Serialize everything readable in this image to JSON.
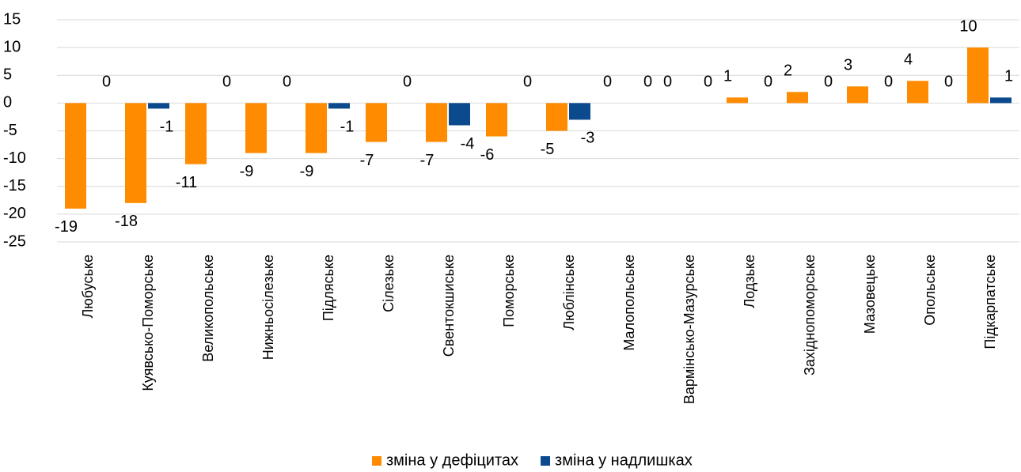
{
  "chart_data": {
    "type": "bar",
    "categories": [
      "Любуське",
      "Куявсько-Поморське",
      "Великопольське",
      "Нижньосілезьке",
      "Підляське",
      "Сілезьке",
      "Свентокшиське",
      "Поморське",
      "Люблінське",
      "Малопольське",
      "Вармінсько-Мазурське",
      "Лодзьке",
      "Західнопоморське",
      "Мазовецьке",
      "Опольське",
      "Підкарпатське"
    ],
    "series": [
      {
        "name": "зміна у дефіцитах",
        "color": "#ff8c00",
        "values": [
          -19,
          -18,
          -11,
          -9,
          -9,
          -7,
          -7,
          -6,
          -5,
          0,
          0,
          1,
          2,
          3,
          4,
          10
        ]
      },
      {
        "name": "зміна у надлишках",
        "color": "#0b4a8c",
        "values": [
          0,
          -1,
          0,
          0,
          -1,
          0,
          -4,
          0,
          -3,
          0,
          0,
          0,
          0,
          0,
          0,
          1
        ]
      }
    ],
    "ylim": [
      -25,
      15
    ],
    "yticks": [
      -25,
      -20,
      -15,
      -10,
      -5,
      0,
      5,
      10,
      15
    ],
    "grid": true,
    "legend": "bottom"
  }
}
